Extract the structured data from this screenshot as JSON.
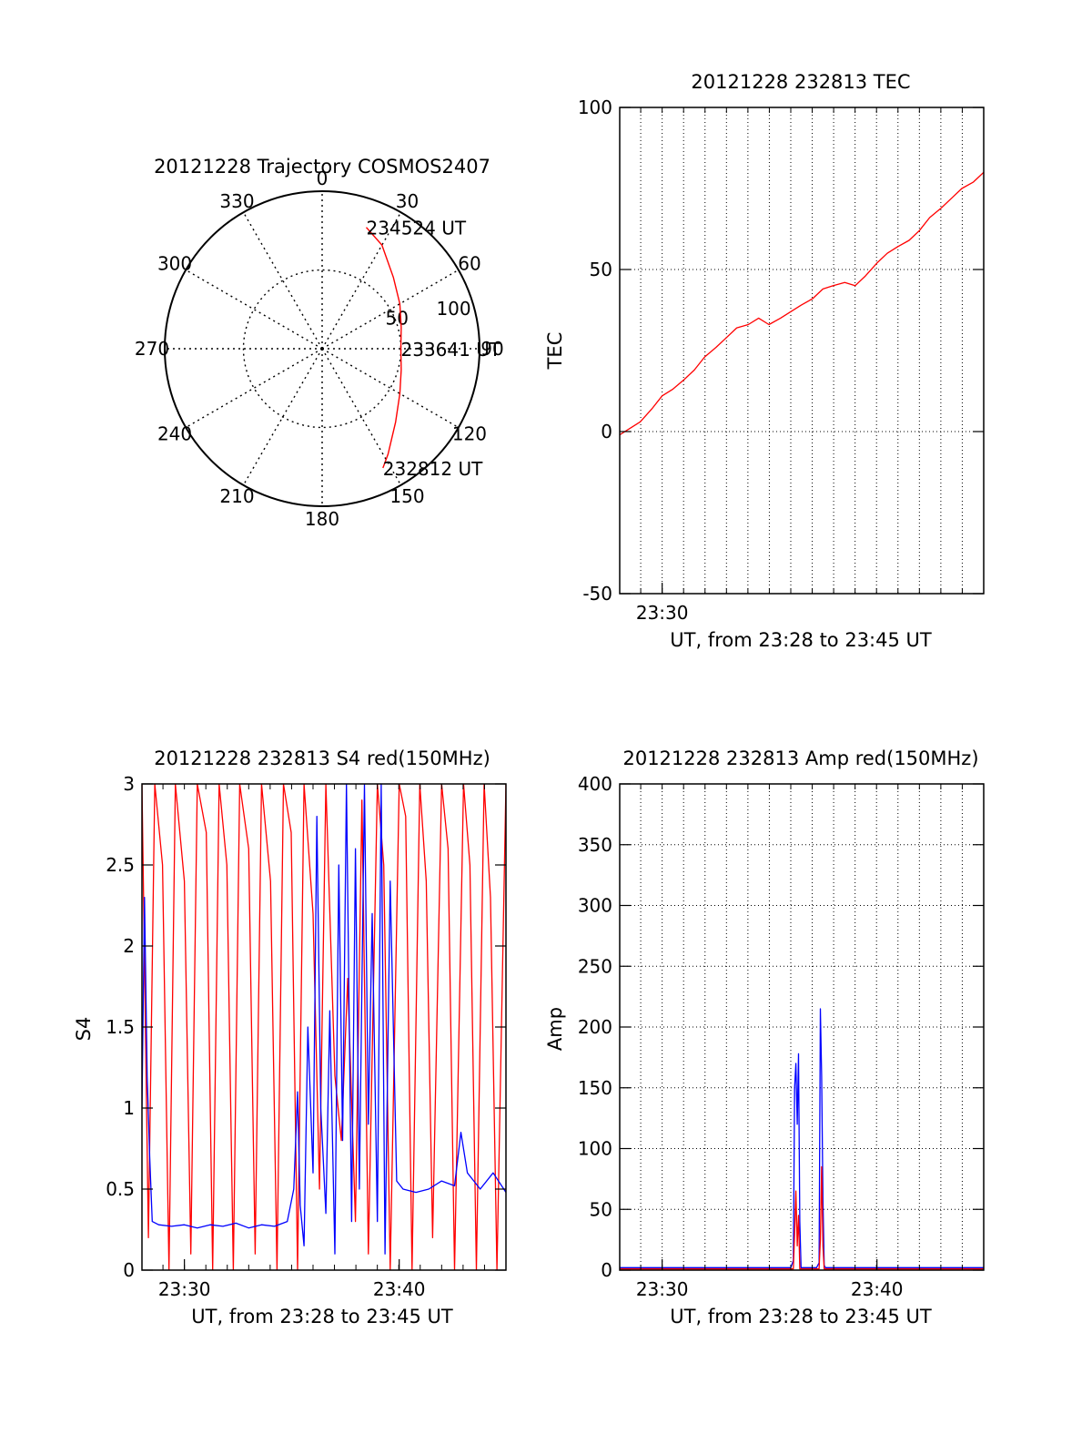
{
  "colors": {
    "red": "#ff0000",
    "blue": "#0000ff",
    "axis": "#000000",
    "grid": "#000000"
  },
  "chart_data": [
    {
      "id": "polar",
      "type": "scatter",
      "title": "20121228 Trajectory COSMOS2407",
      "coordinate_system": "polar",
      "angle_labels": [
        "0",
        "30",
        "60",
        "90",
        "120",
        "150",
        "180",
        "210",
        "240",
        "270",
        "300",
        "330"
      ],
      "radius_labels": [
        "50",
        "100"
      ],
      "radius_range": [
        0,
        100
      ],
      "grid": true,
      "trajectory": {
        "color": "red",
        "points": [
          {
            "az": 20,
            "r": 82
          },
          {
            "az": 30,
            "r": 76
          },
          {
            "az": 45,
            "r": 64
          },
          {
            "az": 60,
            "r": 57
          },
          {
            "az": 75,
            "r": 52
          },
          {
            "az": 90,
            "r": 50
          },
          {
            "az": 105,
            "r": 52
          },
          {
            "az": 120,
            "r": 57
          },
          {
            "az": 135,
            "r": 66
          },
          {
            "az": 148,
            "r": 79
          },
          {
            "az": 153,
            "r": 85
          }
        ]
      },
      "annotations": [
        {
          "text": "234524 UT",
          "az": 20,
          "r": 82
        },
        {
          "text": "233641 UT",
          "az": 90,
          "r": 50
        },
        {
          "text": "232812 UT",
          "az": 153,
          "r": 85
        }
      ]
    },
    {
      "id": "tec",
      "type": "line",
      "title": "20121228 232813 TEC",
      "xlabel": "UT, from 23:28 to 23:45 UT",
      "ylabel": "TEC",
      "xlim": [
        23.467,
        23.75
      ],
      "ylim": [
        -50,
        100
      ],
      "yticks": [
        "-50",
        "0",
        "50",
        "100"
      ],
      "xticks": [
        {
          "value": 23.5,
          "label": "23:30"
        }
      ],
      "grid": true,
      "series": [
        {
          "color": "red",
          "x": [
            23.467,
            23.475,
            23.483,
            23.492,
            23.5,
            23.508,
            23.517,
            23.525,
            23.533,
            23.542,
            23.55,
            23.558,
            23.567,
            23.575,
            23.583,
            23.592,
            23.6,
            23.608,
            23.617,
            23.625,
            23.633,
            23.642,
            23.65,
            23.658,
            23.667,
            23.675,
            23.683,
            23.692,
            23.7,
            23.708,
            23.717,
            23.725,
            23.733,
            23.742,
            23.75
          ],
          "y": [
            -1,
            1,
            3,
            7,
            11,
            13,
            16,
            19,
            23,
            26,
            29,
            32,
            33,
            35,
            33,
            35,
            37,
            39,
            41,
            44,
            45,
            46,
            45,
            48,
            52,
            55,
            57,
            59,
            62,
            66,
            69,
            72,
            75,
            77,
            80
          ]
        }
      ]
    },
    {
      "id": "s4",
      "type": "line",
      "title": "20121228 232813 S4 red(150MHz)",
      "xlabel": "UT, from 23:28 to 23:45 UT",
      "ylabel": "S4",
      "xlim": [
        23.467,
        23.75
      ],
      "ylim": [
        0,
        3
      ],
      "yticks": [
        "0",
        "0.5",
        "1",
        "1.5",
        "2",
        "2.5",
        "3"
      ],
      "xticks": [
        {
          "value": 23.5,
          "label": "23:30"
        },
        {
          "value": 23.667,
          "label": "23:40"
        }
      ],
      "grid": false,
      "series": [
        {
          "color": "red",
          "x": [
            23.467,
            23.472,
            23.477,
            23.483,
            23.488,
            23.493,
            23.5,
            23.505,
            23.51,
            23.517,
            23.522,
            23.527,
            23.533,
            23.538,
            23.543,
            23.55,
            23.555,
            23.56,
            23.567,
            23.572,
            23.577,
            23.583,
            23.588,
            23.593,
            23.6,
            23.605,
            23.61,
            23.617,
            23.622,
            23.627,
            23.633,
            23.638,
            23.643,
            23.65,
            23.655,
            23.66,
            23.667,
            23.672,
            23.677,
            23.683,
            23.688,
            23.693,
            23.7,
            23.705,
            23.71,
            23.717,
            23.722,
            23.727,
            23.733,
            23.738,
            23.743,
            23.75
          ],
          "y": [
            3,
            0.2,
            3,
            2.5,
            0,
            3,
            2.4,
            0.1,
            3,
            2.7,
            0,
            3,
            2.5,
            0,
            3,
            2.6,
            0.1,
            3,
            2.4,
            0,
            3,
            2.7,
            0,
            3,
            2.2,
            0.5,
            3,
            1.2,
            0.8,
            1.8,
            0.3,
            2.9,
            0.1,
            3,
            2.5,
            0,
            3,
            2.8,
            0,
            3,
            2.4,
            0.2,
            3,
            2.6,
            0,
            3,
            2.5,
            0,
            3,
            2.3,
            0,
            3
          ]
        },
        {
          "color": "blue",
          "x": [
            23.467,
            23.469,
            23.471,
            23.473,
            23.475,
            23.48,
            23.49,
            23.5,
            23.51,
            23.52,
            23.53,
            23.54,
            23.55,
            23.56,
            23.57,
            23.58,
            23.585,
            23.588,
            23.59,
            23.593,
            23.596,
            23.6,
            23.603,
            23.606,
            23.61,
            23.613,
            23.617,
            23.62,
            23.623,
            23.626,
            23.63,
            23.633,
            23.636,
            23.64,
            23.643,
            23.646,
            23.65,
            23.653,
            23.656,
            23.66,
            23.665,
            23.67,
            23.68,
            23.69,
            23.7,
            23.71,
            23.715,
            23.72,
            23.725,
            23.73,
            23.74,
            23.75
          ],
          "y": [
            1.0,
            2.3,
            1.2,
            0.7,
            0.3,
            0.28,
            0.27,
            0.28,
            0.26,
            0.28,
            0.27,
            0.29,
            0.26,
            0.28,
            0.27,
            0.3,
            0.5,
            1.1,
            0.4,
            0.15,
            1.5,
            0.6,
            2.8,
            1.0,
            0.35,
            1.6,
            0.1,
            2.5,
            0.8,
            3.0,
            0.3,
            2.6,
            0.5,
            3.0,
            0.9,
            2.2,
            0.3,
            3.0,
            0.1,
            2.4,
            0.55,
            0.5,
            0.48,
            0.5,
            0.55,
            0.52,
            0.85,
            0.6,
            0.55,
            0.5,
            0.6,
            0.48
          ]
        }
      ]
    },
    {
      "id": "amp",
      "type": "line",
      "title": "20121228 232813 Amp red(150MHz)",
      "xlabel": "UT, from 23:28 to 23:45 UT",
      "ylabel": "Amp",
      "xlim": [
        23.467,
        23.75
      ],
      "ylim": [
        0,
        400
      ],
      "yticks": [
        "0",
        "50",
        "100",
        "150",
        "200",
        "250",
        "300",
        "350",
        "400"
      ],
      "xticks": [
        {
          "value": 23.5,
          "label": "23:30"
        },
        {
          "value": 23.667,
          "label": "23:40"
        }
      ],
      "grid": true,
      "series": [
        {
          "color": "blue",
          "x": [
            23.467,
            23.6,
            23.602,
            23.603,
            23.604,
            23.605,
            23.606,
            23.607,
            23.608,
            23.62,
            23.622,
            23.623,
            23.624,
            23.625,
            23.626,
            23.627,
            23.75
          ],
          "y": [
            2,
            2,
            8,
            150,
            170,
            120,
            178,
            40,
            2,
            2,
            6,
            215,
            160,
            60,
            4,
            2,
            2
          ]
        },
        {
          "color": "red",
          "x": [
            23.467,
            23.602,
            23.603,
            23.604,
            23.605,
            23.606,
            23.607,
            23.622,
            23.623,
            23.624,
            23.625,
            23.626,
            23.75
          ],
          "y": [
            1,
            1,
            30,
            65,
            20,
            45,
            1,
            1,
            25,
            85,
            20,
            1,
            1
          ]
        }
      ]
    }
  ]
}
